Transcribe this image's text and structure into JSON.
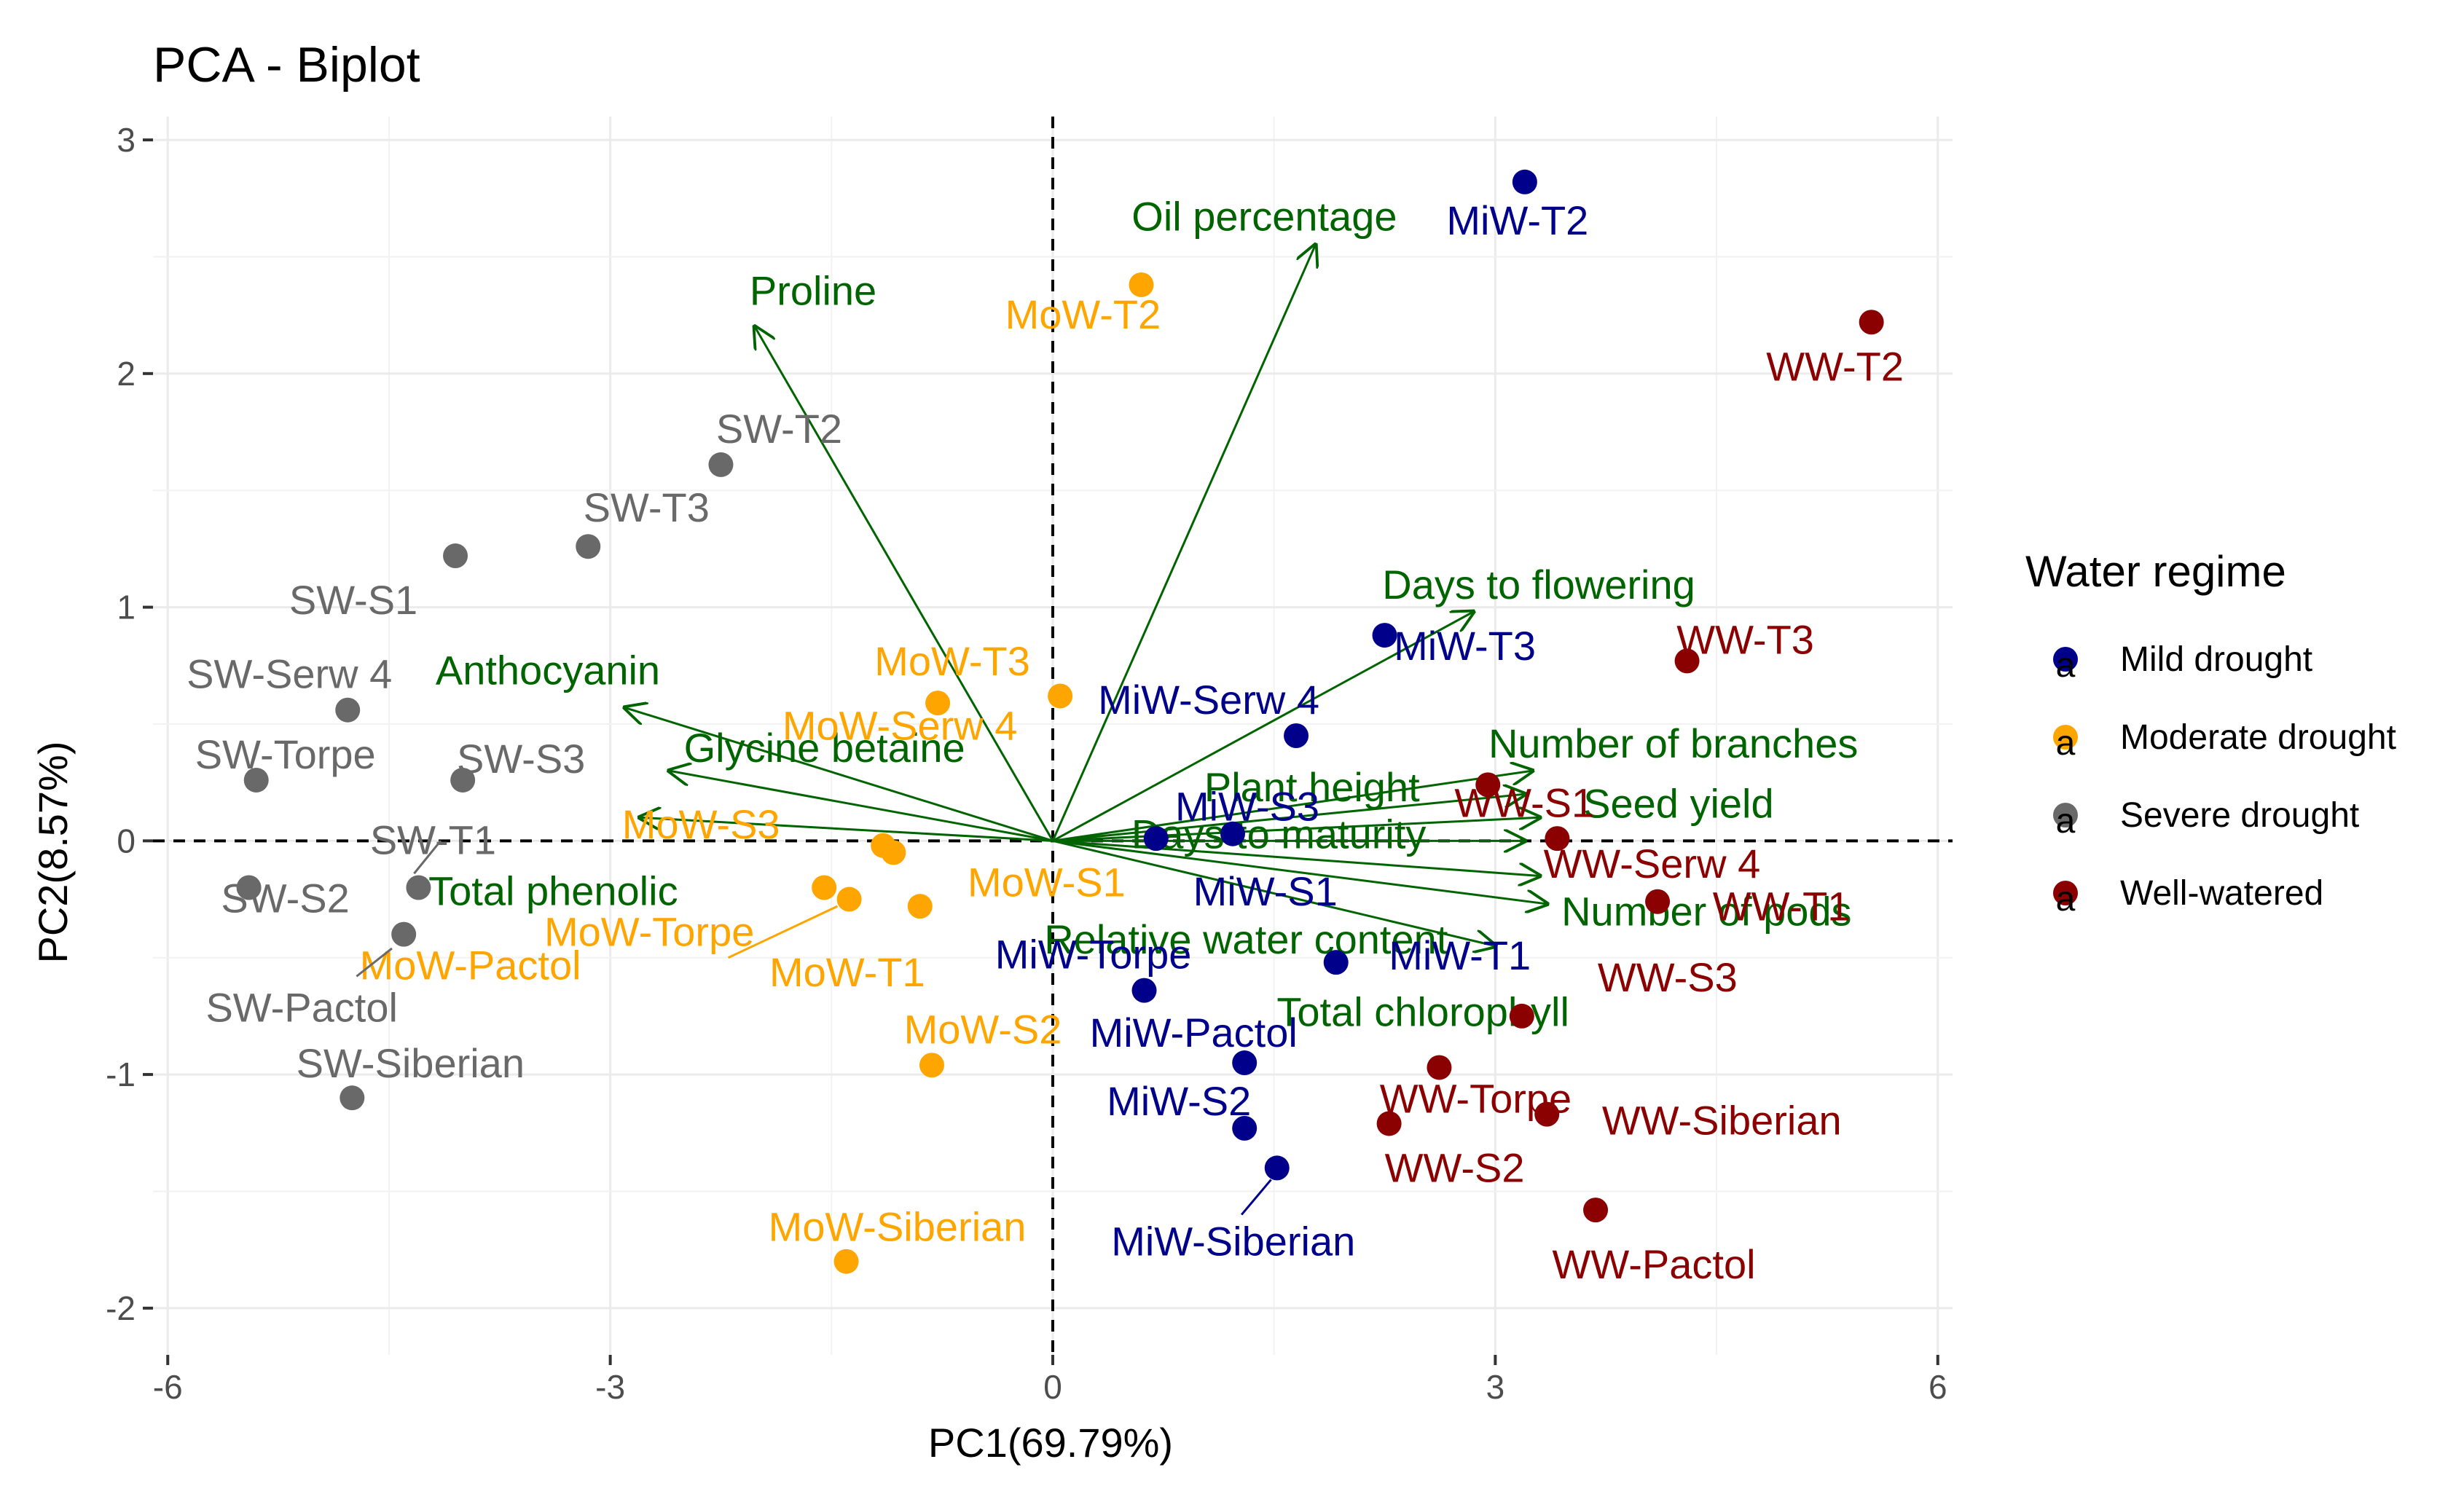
{
  "chart_data": {
    "type": "scatter",
    "subtype": "pca-biplot",
    "title": "PCA - Biplot",
    "xlabel": "PC1(69.79%)",
    "ylabel": "PC2(8.57%)",
    "xlim": [
      -6.1,
      6.1
    ],
    "ylim": [
      -2.2,
      3.1
    ],
    "xticks": [
      -6,
      -3,
      0,
      3,
      6
    ],
    "yticks": [
      -2,
      -1,
      0,
      1,
      2,
      3
    ],
    "grid": true,
    "reference_lines": {
      "x": 0,
      "y": 0,
      "style": "dashed"
    },
    "legend": {
      "title": "Water regime",
      "position": "right",
      "entries": [
        {
          "name": "Mild drought",
          "color": "#00008b",
          "glyph": "a"
        },
        {
          "name": "Moderate drought",
          "color": "#ffa500",
          "glyph": "a"
        },
        {
          "name": "Severe drought",
          "color": "#696969",
          "glyph": "a"
        },
        {
          "name": "Well-watered",
          "color": "#8b0000",
          "glyph": "a"
        }
      ]
    },
    "series": [
      {
        "name": "Mild drought",
        "color": "#00008b",
        "points": [
          {
            "label": "MiW-T2",
            "x": 3.2,
            "y": 2.82
          },
          {
            "label": "MiW-T3",
            "x": 2.25,
            "y": 0.88
          },
          {
            "label": "MiW-Serw 4",
            "x": 1.65,
            "y": 0.45
          },
          {
            "label": "MiW-S3",
            "x": 1.22,
            "y": 0.03
          },
          {
            "label": "MiW-S1",
            "x": 0.7,
            "y": 0.01
          },
          {
            "label": "MiW-T1",
            "x": 1.92,
            "y": -0.52
          },
          {
            "label": "MiW-Torpe",
            "x": 0.62,
            "y": -0.64
          },
          {
            "label": "MiW-Pactol",
            "x": 1.3,
            "y": -0.95
          },
          {
            "label": "MiW-S2",
            "x": 1.3,
            "y": -1.23
          },
          {
            "label": "MiW-Siberian",
            "x": 1.52,
            "y": -1.4
          }
        ]
      },
      {
        "name": "Moderate drought",
        "color": "#ffa500",
        "points": [
          {
            "label": "MoW-T2",
            "x": 0.6,
            "y": 2.38
          },
          {
            "label": "MoW-T3",
            "x": -0.78,
            "y": 0.59
          },
          {
            "label": "MoW-S3",
            "x": -1.15,
            "y": -0.02
          },
          {
            "label": "MoW-Serw 4",
            "x": 0.05,
            "y": 0.62
          },
          {
            "label": "MoW-S1",
            "x": -1.08,
            "y": -0.05
          },
          {
            "label": "MoW-Torpe",
            "x": -1.55,
            "y": -0.2
          },
          {
            "label": "MoW-Pactol",
            "x": -1.38,
            "y": -0.25
          },
          {
            "label": "MoW-T1",
            "x": -0.9,
            "y": -0.28
          },
          {
            "label": "MoW-S2",
            "x": -0.82,
            "y": -0.96
          },
          {
            "label": "MoW-Siberian",
            "x": -1.4,
            "y": -1.8
          }
        ]
      },
      {
        "name": "Severe drought",
        "color": "#696969",
        "points": [
          {
            "label": "SW-T2",
            "x": -2.25,
            "y": 1.61
          },
          {
            "label": "SW-T3",
            "x": -3.15,
            "y": 1.26
          },
          {
            "label": "SW-S1",
            "x": -4.05,
            "y": 1.22
          },
          {
            "label": "SW-Serw 4",
            "x": -4.78,
            "y": 0.56
          },
          {
            "label": "SW-Torpe",
            "x": -5.4,
            "y": 0.26
          },
          {
            "label": "SW-S3",
            "x": -4.0,
            "y": 0.26
          },
          {
            "label": "SW-T1",
            "x": -4.3,
            "y": -0.2
          },
          {
            "label": "SW-S2",
            "x": -5.45,
            "y": -0.2
          },
          {
            "label": "SW-Pactol",
            "x": -4.4,
            "y": -0.4
          },
          {
            "label": "SW-Siberian",
            "x": -4.75,
            "y": -1.1
          }
        ]
      },
      {
        "name": "Well-watered",
        "color": "#8b0000",
        "points": [
          {
            "label": "WW-T2",
            "x": 5.55,
            "y": 2.22
          },
          {
            "label": "WW-T3",
            "x": 4.3,
            "y": 0.77
          },
          {
            "label": "WW-S1",
            "x": 2.95,
            "y": 0.24
          },
          {
            "label": "WW-Serw 4",
            "x": 3.42,
            "y": 0.01
          },
          {
            "label": "WW-T1",
            "x": 4.1,
            "y": -0.26
          },
          {
            "label": "WW-S3",
            "x": 3.18,
            "y": -0.75
          },
          {
            "label": "WW-Torpe",
            "x": 2.62,
            "y": -0.97
          },
          {
            "label": "WW-Siberian",
            "x": 3.35,
            "y": -1.17
          },
          {
            "label": "WW-S2",
            "x": 2.28,
            "y": -1.21
          },
          {
            "label": "WW-Pactol",
            "x": 3.68,
            "y": -1.58
          }
        ]
      }
    ],
    "loadings": {
      "color": "#006400",
      "vectors": [
        {
          "label": "Proline",
          "x": -2.02,
          "y": 2.2
        },
        {
          "label": "Oil percentage",
          "x": 1.78,
          "y": 2.55
        },
        {
          "label": "Days to flowering",
          "x": 2.85,
          "y": 0.98
        },
        {
          "label": "Anthocyanin",
          "x": -2.9,
          "y": 0.57
        },
        {
          "label": "Glycine betaine",
          "x": -2.6,
          "y": 0.3
        },
        {
          "label": "Total phenolic",
          "x": -2.8,
          "y": 0.1
        },
        {
          "label": "Number of branches",
          "x": 3.25,
          "y": 0.3
        },
        {
          "label": "Plant height",
          "x": 3.2,
          "y": 0.2
        },
        {
          "label": "Seed yield",
          "x": 3.3,
          "y": 0.1
        },
        {
          "label": "Days to maturity",
          "x": 3.2,
          "y": 0.0
        },
        {
          "label": "Number of pods",
          "x": 3.3,
          "y": -0.15
        },
        {
          "label": "Relative water content",
          "x": 3.35,
          "y": -0.27
        },
        {
          "label": "Total chlorophyll",
          "x": 3.0,
          "y": -0.45
        }
      ]
    }
  }
}
